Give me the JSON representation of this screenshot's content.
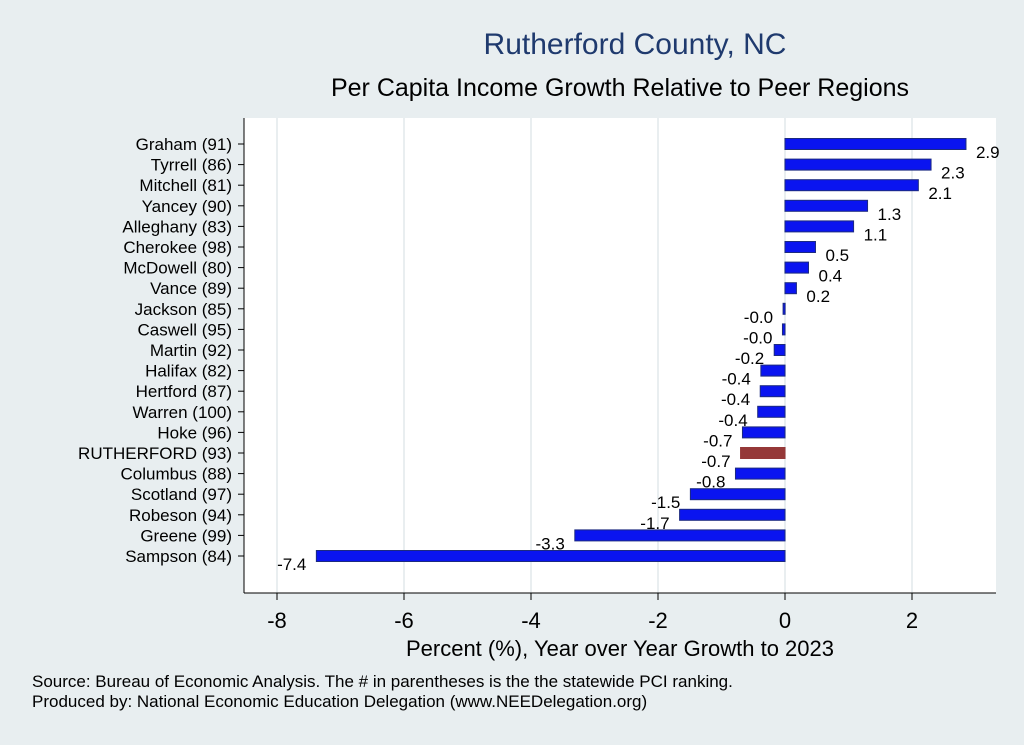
{
  "header": {
    "title": "Rutherford County, NC",
    "subtitle": "Per Capita Income Growth Relative to Peer Regions"
  },
  "chart_data": {
    "type": "bar",
    "orientation": "horizontal",
    "title": "Rutherford County, NC",
    "subtitle": "Per Capita Income Growth Relative to Peer Regions",
    "xlabel": "Percent (%), Year over Year Growth to 2023",
    "ylabel": "",
    "xlim": [
      -8.3,
      3.3
    ],
    "xticks": [
      -8,
      -6,
      -4,
      -2,
      0,
      2
    ],
    "grid": true,
    "categories": [
      "Graham (91)",
      "Tyrrell (86)",
      "Mitchell (81)",
      "Yancey (90)",
      "Alleghany (83)",
      "Cherokee (98)",
      "McDowell (80)",
      "Vance (89)",
      "Jackson (85)",
      "Caswell (95)",
      "Martin (92)",
      "Halifax (82)",
      "Hertford (87)",
      "Warren (100)",
      "Hoke (96)",
      "RUTHERFORD (93)",
      "Columbus (88)",
      "Scotland (97)",
      "Robeson (94)",
      "Greene (99)",
      "Sampson (84)"
    ],
    "values": [
      2.85,
      2.3,
      2.1,
      1.3,
      1.08,
      0.48,
      0.37,
      0.18,
      -0.03,
      -0.04,
      -0.17,
      -0.38,
      -0.39,
      -0.43,
      -0.67,
      -0.7,
      -0.78,
      -1.49,
      -1.66,
      -3.31,
      -7.38
    ],
    "value_labels": [
      "2.9",
      "2.3",
      "2.1",
      "1.3",
      "1.1",
      "0.5",
      "0.4",
      "0.2",
      "-0.0",
      "-0.0",
      "-0.2",
      "-0.4",
      "-0.4",
      "-0.4",
      "-0.7",
      "-0.7",
      "-0.8",
      "-1.5",
      "-1.7",
      "-3.3",
      "-7.4"
    ],
    "highlight": "RUTHERFORD (93)",
    "colors": {
      "bar": "#0a14f0",
      "bar_edge": "#1c2a80",
      "highlight": "#953838",
      "grid": "#e9eef0",
      "plot_bg": "#ffffff",
      "page_bg": "#e8eef0"
    }
  },
  "footer": {
    "source": "Source: Bureau of Economic Analysis. The # in parentheses is the the statewide PCI ranking.",
    "producer": "Produced by: National Economic Education Delegation (www.NEEDelegation.org)"
  }
}
